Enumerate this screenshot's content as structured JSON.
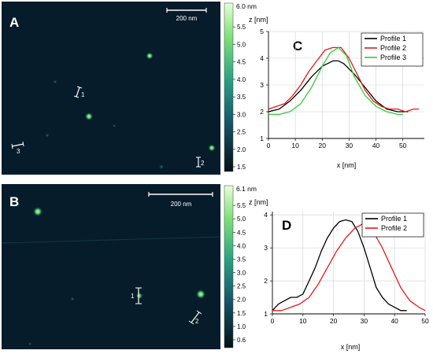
{
  "colors": {
    "background": "#ffffff",
    "afm_dark": "#071c2b",
    "particle_bright": "#7ee07e",
    "profile_marker": "#ffffff",
    "black": "#000000",
    "red": "#e41a1c",
    "green": "#33cc33"
  },
  "panel_A": {
    "letter": "A",
    "scalebar_label": "200 nm",
    "colorbar": {
      "max_label": "6.0 nm",
      "ticks": [
        "5.5",
        "5.0",
        "4.5",
        "4.0",
        "3.5",
        "3.0",
        "2.5",
        "2.0",
        "1.5"
      ]
    },
    "markers": [
      "1",
      "2",
      "3"
    ]
  },
  "panel_B": {
    "letter": "B",
    "scalebar_label": "200 nm",
    "colorbar": {
      "max_label": "6.1 nm",
      "ticks": [
        "5.5",
        "5.0",
        "4.5",
        "4.0",
        "3.5",
        "3.0",
        "2.5",
        "2.0",
        "1.5",
        "1.0",
        "0.6"
      ]
    },
    "markers": [
      "1",
      "2"
    ]
  },
  "chart_data": [
    {
      "panel": "C",
      "type": "line",
      "xlabel": "x [nm]",
      "ylabel": "z [nm]",
      "xlim": [
        0,
        58
      ],
      "ylim": [
        1,
        5
      ],
      "xticks": [
        0,
        10,
        20,
        30,
        40,
        50
      ],
      "yticks": [
        1,
        2,
        3,
        4,
        5
      ],
      "grid": true,
      "legend": "top-right",
      "series": [
        {
          "name": "Profile 1",
          "color": "#000000",
          "x": [
            0,
            4,
            8,
            12,
            16,
            20,
            24,
            26,
            28,
            32,
            36,
            40,
            44,
            48,
            52
          ],
          "y": [
            2.0,
            2.1,
            2.4,
            2.8,
            3.3,
            3.7,
            3.9,
            3.9,
            3.8,
            3.4,
            2.9,
            2.4,
            2.1,
            2.0,
            2.0
          ]
        },
        {
          "name": "Profile 2",
          "color": "#e41a1c",
          "x": [
            0,
            3,
            6,
            9,
            12,
            15,
            18,
            21,
            24,
            27,
            30,
            33,
            36,
            39,
            42,
            45,
            48,
            51,
            54,
            56
          ],
          "y": [
            2.1,
            2.2,
            2.3,
            2.6,
            3.0,
            3.5,
            3.9,
            4.3,
            4.4,
            4.4,
            4.0,
            3.4,
            2.8,
            2.4,
            2.2,
            2.1,
            2.1,
            2.0,
            2.1,
            2.1
          ]
        },
        {
          "name": "Profile 3",
          "color": "#33cc33",
          "x": [
            0,
            4,
            8,
            12,
            16,
            20,
            23,
            26,
            29,
            32,
            36,
            40,
            44,
            48,
            50
          ],
          "y": [
            1.9,
            1.9,
            2.0,
            2.3,
            2.9,
            3.7,
            4.2,
            4.4,
            4.1,
            3.3,
            2.6,
            2.2,
            2.0,
            1.9,
            1.9
          ]
        }
      ]
    },
    {
      "panel": "D",
      "type": "line",
      "xlabel": "x [nm]",
      "ylabel": "z [nm]",
      "xlim": [
        0,
        50
      ],
      "ylim": [
        1,
        4.1
      ],
      "xticks": [
        0,
        10,
        20,
        30,
        40,
        50
      ],
      "yticks": [
        1,
        2,
        3,
        4
      ],
      "grid": true,
      "legend": "top-right",
      "series": [
        {
          "name": "Profile 1",
          "color": "#000000",
          "x": [
            0,
            2,
            4,
            6,
            8,
            10,
            12,
            14,
            16,
            18,
            20,
            22,
            24,
            26,
            28,
            30,
            32,
            34,
            36,
            38,
            40,
            42,
            44
          ],
          "y": [
            1.1,
            1.3,
            1.4,
            1.5,
            1.5,
            1.6,
            2.0,
            2.4,
            2.9,
            3.3,
            3.6,
            3.8,
            3.85,
            3.8,
            3.5,
            3.0,
            2.4,
            1.8,
            1.5,
            1.3,
            1.2,
            1.1,
            1.1
          ]
        },
        {
          "name": "Profile 2",
          "color": "#e41a1c",
          "x": [
            0,
            3,
            6,
            9,
            12,
            15,
            18,
            21,
            24,
            27,
            30,
            33,
            36,
            39,
            42,
            45,
            48,
            50
          ],
          "y": [
            1.1,
            1.1,
            1.2,
            1.3,
            1.5,
            1.9,
            2.4,
            2.9,
            3.3,
            3.6,
            3.75,
            3.5,
            3.0,
            2.4,
            1.8,
            1.4,
            1.2,
            1.1
          ]
        }
      ]
    }
  ]
}
